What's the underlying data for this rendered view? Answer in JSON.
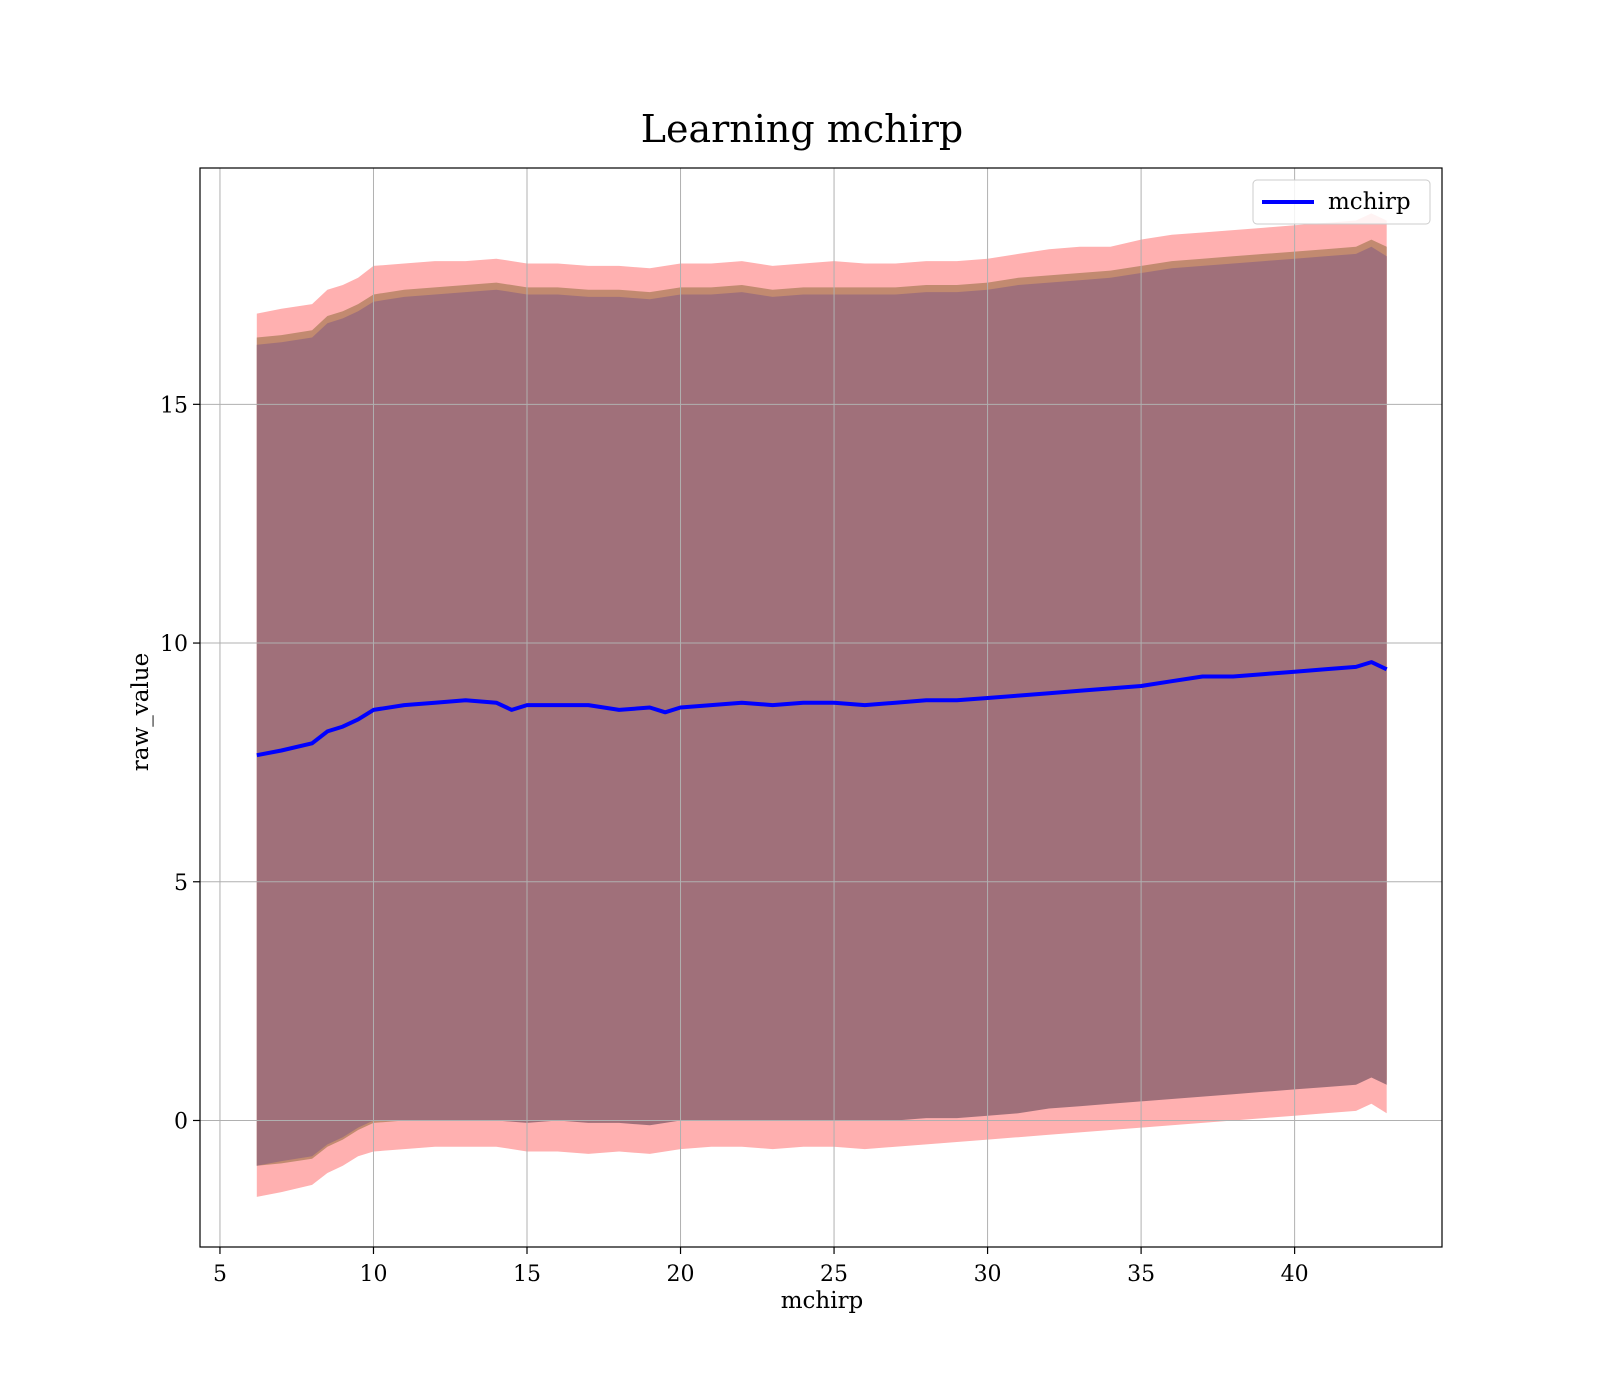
{
  "chart_data": {
    "type": "line",
    "title": "Learning mchirp",
    "xlabel": "mchirp",
    "ylabel": "raw_value",
    "xlim": [
      4.35,
      44.8
    ],
    "ylim": [
      -2.65,
      19.95
    ],
    "xticks": [
      5,
      10,
      15,
      20,
      25,
      30,
      35,
      40
    ],
    "yticks": [
      0,
      5,
      10,
      15
    ],
    "grid": true,
    "legend_position": "top-right",
    "colors": {
      "line": "#0000ff",
      "outer_band": "#ffb0b0",
      "middle_band": "#c28a70",
      "inner_band": "#a0707a",
      "grid": "#b0b0b0"
    },
    "series": [
      {
        "name": "mchirp",
        "x": [
          6.2,
          7,
          8,
          8.5,
          9,
          9.5,
          10,
          11,
          12,
          13,
          14,
          14.5,
          15,
          16,
          17,
          18,
          19,
          19.5,
          20,
          21,
          22,
          23,
          24,
          25,
          26,
          27,
          28,
          29,
          30,
          31,
          32,
          33,
          34,
          35,
          36,
          37,
          38,
          39,
          40,
          41,
          42,
          42.5,
          43
        ],
        "y": [
          7.65,
          7.75,
          7.9,
          8.15,
          8.25,
          8.4,
          8.6,
          8.7,
          8.75,
          8.8,
          8.75,
          8.6,
          8.7,
          8.7,
          8.7,
          8.6,
          8.65,
          8.55,
          8.65,
          8.7,
          8.75,
          8.7,
          8.75,
          8.75,
          8.7,
          8.75,
          8.8,
          8.8,
          8.85,
          8.9,
          8.95,
          9.0,
          9.05,
          9.1,
          9.2,
          9.3,
          9.3,
          9.35,
          9.4,
          9.45,
          9.5,
          9.6,
          9.45
        ]
      }
    ],
    "bands": [
      {
        "role": "outer",
        "x": [
          6.2,
          7,
          8,
          8.5,
          9,
          9.5,
          10,
          11,
          12,
          13,
          14,
          15,
          16,
          17,
          18,
          19,
          20,
          21,
          22,
          23,
          24,
          25,
          26,
          27,
          28,
          29,
          30,
          31,
          32,
          33,
          34,
          35,
          36,
          37,
          38,
          39,
          40,
          41,
          42,
          42.5,
          43
        ],
        "upper": [
          16.9,
          17.0,
          17.1,
          17.4,
          17.5,
          17.65,
          17.9,
          17.95,
          18.0,
          18.0,
          18.05,
          17.95,
          17.95,
          17.9,
          17.9,
          17.85,
          17.95,
          17.95,
          18.0,
          17.9,
          17.95,
          18.0,
          17.95,
          17.95,
          18.0,
          18.0,
          18.05,
          18.15,
          18.25,
          18.3,
          18.3,
          18.45,
          18.55,
          18.6,
          18.65,
          18.7,
          18.75,
          18.8,
          18.85,
          19.0,
          18.85
        ],
        "lower": [
          -1.6,
          -1.5,
          -1.35,
          -1.1,
          -0.95,
          -0.75,
          -0.65,
          -0.6,
          -0.55,
          -0.55,
          -0.55,
          -0.65,
          -0.65,
          -0.7,
          -0.65,
          -0.7,
          -0.6,
          -0.55,
          -0.55,
          -0.6,
          -0.55,
          -0.55,
          -0.6,
          -0.55,
          -0.5,
          -0.45,
          -0.4,
          -0.35,
          -0.3,
          -0.25,
          -0.2,
          -0.15,
          -0.1,
          -0.05,
          0.0,
          0.05,
          0.1,
          0.15,
          0.2,
          0.35,
          0.15
        ]
      },
      {
        "role": "middle",
        "x": [
          6.2,
          7,
          8,
          8.5,
          9,
          9.5,
          10,
          11,
          12,
          13,
          14,
          15,
          16,
          17,
          18,
          19,
          20,
          21,
          22,
          23,
          24,
          25,
          26,
          27,
          28,
          29,
          30,
          31,
          32,
          33,
          34,
          35,
          36,
          37,
          38,
          39,
          40,
          41,
          42,
          42.5,
          43
        ],
        "upper": [
          16.4,
          16.45,
          16.55,
          16.85,
          16.95,
          17.1,
          17.3,
          17.4,
          17.45,
          17.5,
          17.55,
          17.45,
          17.45,
          17.4,
          17.4,
          17.35,
          17.45,
          17.45,
          17.5,
          17.4,
          17.45,
          17.45,
          17.45,
          17.45,
          17.5,
          17.5,
          17.55,
          17.65,
          17.7,
          17.75,
          17.8,
          17.9,
          18.0,
          18.05,
          18.1,
          18.15,
          18.2,
          18.25,
          18.3,
          18.45,
          18.3
        ],
        "lower": [
          -0.95,
          -0.9,
          -0.8,
          -0.55,
          -0.4,
          -0.2,
          -0.05,
          0.0,
          0.05,
          0.1,
          0.1,
          0.0,
          0.05,
          0.0,
          0.0,
          -0.05,
          0.05,
          0.05,
          0.1,
          0.05,
          0.1,
          0.1,
          0.1,
          0.1,
          0.15,
          0.15,
          0.2,
          0.25,
          0.35,
          0.4,
          0.45,
          0.5,
          0.55,
          0.6,
          0.65,
          0.7,
          0.75,
          0.8,
          0.85,
          1.0,
          0.85
        ]
      },
      {
        "role": "inner",
        "x": [
          6.2,
          7,
          8,
          8.5,
          9,
          9.5,
          10,
          11,
          12,
          13,
          14,
          15,
          16,
          17,
          18,
          19,
          20,
          21,
          22,
          23,
          24,
          25,
          26,
          27,
          28,
          29,
          30,
          31,
          32,
          33,
          34,
          35,
          36,
          37,
          38,
          39,
          40,
          41,
          42,
          42.5,
          43
        ],
        "upper": [
          16.25,
          16.3,
          16.4,
          16.7,
          16.8,
          16.95,
          17.15,
          17.25,
          17.3,
          17.35,
          17.4,
          17.3,
          17.3,
          17.25,
          17.25,
          17.2,
          17.3,
          17.3,
          17.35,
          17.25,
          17.3,
          17.3,
          17.3,
          17.3,
          17.35,
          17.35,
          17.4,
          17.5,
          17.55,
          17.6,
          17.65,
          17.75,
          17.85,
          17.9,
          17.95,
          18.0,
          18.05,
          18.1,
          18.15,
          18.3,
          18.1
        ],
        "lower": [
          -0.95,
          -0.85,
          -0.75,
          -0.5,
          -0.35,
          -0.15,
          0.0,
          0.0,
          0.0,
          0.0,
          0.0,
          -0.05,
          0.0,
          -0.05,
          -0.05,
          -0.1,
          0.0,
          0.0,
          0.0,
          0.0,
          0.0,
          0.0,
          0.0,
          0.0,
          0.05,
          0.05,
          0.1,
          0.15,
          0.25,
          0.3,
          0.35,
          0.4,
          0.45,
          0.5,
          0.55,
          0.6,
          0.65,
          0.7,
          0.75,
          0.9,
          0.75
        ]
      }
    ]
  }
}
